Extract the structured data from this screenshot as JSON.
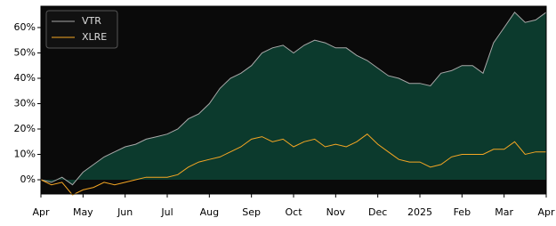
{
  "chart_data": {
    "type": "line",
    "categories": [
      "Apr",
      null,
      null,
      null,
      "May",
      null,
      null,
      null,
      "Jun",
      null,
      null,
      null,
      "Jul",
      null,
      null,
      null,
      "Aug",
      null,
      null,
      null,
      "Sep",
      null,
      null,
      null,
      "Oct",
      null,
      null,
      null,
      "Nov",
      null,
      null,
      null,
      "Dec",
      null,
      null,
      null,
      "2025",
      null,
      null,
      null,
      "Feb",
      null,
      null,
      null,
      "Mar",
      null,
      null,
      null,
      "Apr"
    ],
    "series": [
      {
        "name": "VTR",
        "color": "#a8a8a8",
        "fill": "#0c3a2d",
        "values": [
          0,
          -1,
          1,
          -2,
          3,
          6,
          9,
          11,
          13,
          14,
          16,
          17,
          18,
          20,
          24,
          26,
          30,
          36,
          40,
          42,
          45,
          50,
          52,
          53,
          50,
          53,
          55,
          54,
          52,
          52,
          49,
          47,
          44,
          41,
          40,
          38,
          38,
          37,
          42,
          43,
          45,
          45,
          42,
          54,
          60,
          66,
          62,
          63,
          66
        ]
      },
      {
        "name": "XLRE",
        "color": "#f5a623",
        "values": [
          0,
          -2,
          -1,
          -6,
          -4,
          -3,
          -1,
          -2,
          -1,
          0,
          1,
          1,
          1,
          2,
          5,
          7,
          8,
          9,
          11,
          13,
          16,
          17,
          15,
          16,
          13,
          15,
          16,
          13,
          14,
          13,
          15,
          18,
          14,
          11,
          8,
          7,
          7,
          5,
          6,
          9,
          10,
          10,
          10,
          12,
          12,
          15,
          10,
          11,
          11
        ]
      }
    ],
    "ylim": [
      -5.6,
      68.4
    ],
    "yticks": [
      {
        "value": 0,
        "label": "0%"
      },
      {
        "value": 10,
        "label": "10%"
      },
      {
        "value": 20,
        "label": "20%"
      },
      {
        "value": 30,
        "label": "30%"
      },
      {
        "value": 40,
        "label": "40%"
      },
      {
        "value": 50,
        "label": "50%"
      },
      {
        "value": 60,
        "label": "60%"
      }
    ],
    "legend": "upper left",
    "background": "#0a0a0a"
  }
}
